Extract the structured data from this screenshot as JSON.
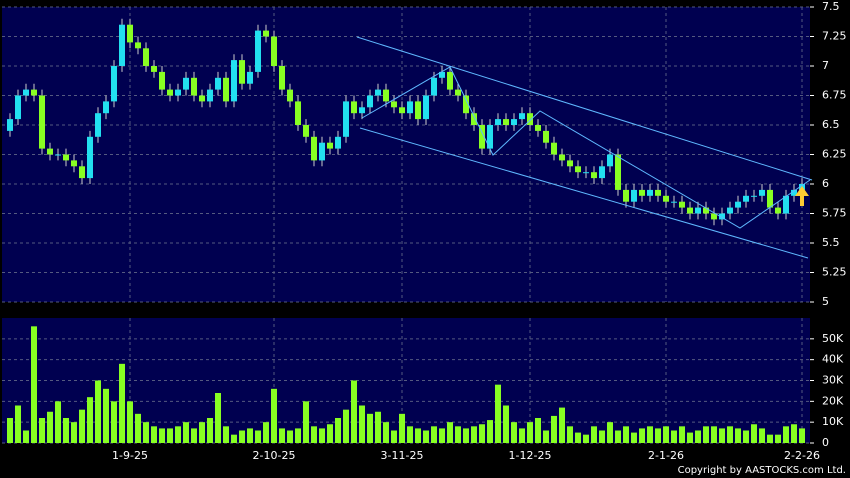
{
  "chart_data": [
    {
      "type": "candlestick",
      "up_color": "#22e0f0",
      "down_color": "#88ff22",
      "grid": true,
      "open": [
        6.45,
        6.55,
        6.75,
        6.8,
        6.75,
        6.3,
        6.25,
        6.25,
        6.2,
        6.15,
        6.05,
        6.4,
        6.6,
        6.7,
        7.0,
        7.35,
        7.2,
        7.15,
        7.0,
        6.95,
        6.8,
        6.75,
        6.8,
        6.9,
        6.75,
        6.7,
        6.8,
        6.9,
        6.7,
        7.05,
        6.85,
        6.95,
        7.3,
        7.25,
        7.0,
        6.8,
        6.7,
        6.5,
        6.4,
        6.2,
        6.35,
        6.3,
        6.4,
        6.7,
        6.6,
        6.65,
        6.75,
        6.8,
        6.7,
        6.65,
        6.6,
        6.7,
        6.55,
        6.75,
        6.9,
        6.95,
        6.8,
        6.75,
        6.6,
        6.5,
        6.3,
        6.5,
        6.55,
        6.5,
        6.55,
        6.6,
        6.5,
        6.45,
        6.35,
        6.25,
        6.2,
        6.15,
        6.1,
        6.1,
        6.05,
        6.15,
        6.25,
        5.95,
        5.85,
        5.95,
        5.9,
        5.95,
        5.9,
        5.85,
        5.85,
        5.8,
        5.75,
        5.8,
        5.75,
        5.7,
        5.75,
        5.8,
        5.85,
        5.9,
        5.9,
        5.95,
        5.8,
        5.75,
        5.9,
        5.95
      ],
      "high": [
        6.6,
        6.8,
        6.85,
        6.85,
        6.8,
        6.35,
        6.3,
        6.3,
        6.25,
        6.2,
        6.45,
        6.65,
        6.75,
        7.05,
        7.4,
        7.4,
        7.25,
        7.2,
        7.05,
        7.0,
        6.85,
        6.85,
        6.95,
        6.95,
        6.8,
        6.85,
        6.95,
        6.95,
        7.1,
        7.1,
        7.0,
        7.35,
        7.35,
        7.3,
        7.05,
        6.85,
        6.75,
        6.55,
        6.45,
        6.4,
        6.4,
        6.45,
        6.75,
        6.75,
        6.7,
        6.8,
        6.85,
        6.85,
        6.75,
        6.7,
        6.75,
        6.75,
        6.8,
        6.95,
        7.0,
        7.0,
        6.85,
        6.8,
        6.65,
        6.55,
        6.55,
        6.6,
        6.6,
        6.6,
        6.65,
        6.65,
        6.55,
        6.5,
        6.4,
        6.3,
        6.25,
        6.2,
        6.15,
        6.15,
        6.2,
        6.3,
        6.3,
        6.0,
        6.0,
        6.0,
        6.0,
        6.0,
        5.95,
        5.9,
        5.9,
        5.85,
        5.85,
        5.85,
        5.8,
        5.8,
        5.85,
        5.9,
        5.95,
        5.95,
        6.0,
        6.0,
        5.85,
        5.95,
        6.0,
        6.05
      ],
      "low": [
        6.4,
        6.5,
        6.7,
        6.7,
        6.25,
        6.2,
        6.2,
        6.15,
        6.1,
        6.0,
        6.0,
        6.35,
        6.55,
        6.65,
        6.95,
        7.15,
        7.1,
        6.95,
        6.9,
        6.75,
        6.7,
        6.7,
        6.75,
        6.7,
        6.65,
        6.65,
        6.75,
        6.65,
        6.65,
        6.8,
        6.8,
        6.9,
        7.2,
        6.95,
        6.75,
        6.65,
        6.45,
        6.35,
        6.15,
        6.15,
        6.25,
        6.25,
        6.35,
        6.55,
        6.55,
        6.6,
        6.7,
        6.65,
        6.6,
        6.55,
        6.55,
        6.5,
        6.5,
        6.7,
        6.85,
        6.75,
        6.7,
        6.55,
        6.45,
        6.25,
        6.25,
        6.45,
        6.45,
        6.45,
        6.5,
        6.45,
        6.4,
        6.3,
        6.2,
        6.15,
        6.1,
        6.05,
        6.05,
        6.0,
        6.0,
        6.1,
        5.9,
        5.8,
        5.8,
        5.85,
        5.85,
        5.85,
        5.8,
        5.8,
        5.75,
        5.7,
        5.7,
        5.7,
        5.65,
        5.65,
        5.7,
        5.75,
        5.8,
        5.85,
        5.85,
        5.75,
        5.7,
        5.7,
        5.85,
        5.9
      ],
      "close": [
        6.55,
        6.75,
        6.8,
        6.75,
        6.3,
        6.25,
        6.25,
        6.2,
        6.15,
        6.05,
        6.4,
        6.6,
        6.7,
        7.0,
        7.35,
        7.2,
        7.15,
        7.0,
        6.95,
        6.8,
        6.75,
        6.8,
        6.9,
        6.75,
        6.7,
        6.8,
        6.9,
        6.7,
        7.05,
        6.85,
        6.95,
        7.3,
        7.25,
        7.0,
        6.8,
        6.7,
        6.5,
        6.4,
        6.2,
        6.35,
        6.3,
        6.4,
        6.7,
        6.6,
        6.65,
        6.75,
        6.8,
        6.7,
        6.65,
        6.6,
        6.7,
        6.55,
        6.75,
        6.9,
        6.95,
        6.8,
        6.75,
        6.6,
        6.5,
        6.3,
        6.5,
        6.55,
        6.5,
        6.55,
        6.6,
        6.5,
        6.45,
        6.35,
        6.25,
        6.2,
        6.15,
        6.1,
        6.1,
        6.05,
        6.15,
        6.25,
        5.95,
        5.85,
        5.95,
        5.9,
        5.95,
        5.9,
        5.85,
        5.85,
        5.8,
        5.75,
        5.8,
        5.75,
        5.7,
        5.75,
        5.8,
        5.85,
        5.9,
        5.9,
        5.95,
        5.8,
        5.75,
        5.9,
        5.95,
        6.0
      ],
      "ylim": [
        5,
        7.5
      ],
      "yticks": [
        5,
        5.25,
        5.5,
        5.75,
        6,
        6.25,
        6.5,
        6.75,
        7,
        7.25,
        7.5
      ]
    },
    {
      "type": "bar",
      "color": "#88ff22",
      "grid": true,
      "categories": [
        null,
        null,
        null,
        null,
        null,
        null,
        null,
        null,
        null,
        null,
        null,
        null,
        null,
        null,
        null,
        "1-9-25",
        null,
        null,
        null,
        null,
        null,
        null,
        null,
        null,
        null,
        null,
        null,
        null,
        null,
        null,
        null,
        null,
        null,
        "2-10-25",
        null,
        null,
        null,
        null,
        null,
        null,
        null,
        null,
        null,
        null,
        null,
        null,
        null,
        null,
        null,
        "3-11-25",
        null,
        null,
        null,
        null,
        null,
        null,
        null,
        null,
        null,
        null,
        null,
        null,
        null,
        null,
        null,
        "1-12-25",
        null,
        null,
        null,
        null,
        null,
        null,
        null,
        null,
        null,
        null,
        null,
        null,
        null,
        null,
        null,
        null,
        "2-1-26",
        null,
        null,
        null,
        null,
        null,
        null,
        null,
        null,
        null,
        null,
        null,
        null,
        null,
        null,
        null,
        null,
        "2-2-26"
      ],
      "values": [
        12000,
        18000,
        6000,
        56000,
        12000,
        15000,
        20000,
        12000,
        10000,
        16000,
        22000,
        30000,
        26000,
        20000,
        38000,
        20000,
        14000,
        10000,
        8000,
        7000,
        7000,
        8000,
        10000,
        7000,
        10000,
        12000,
        24000,
        8000,
        4000,
        6000,
        7000,
        6000,
        10000,
        26000,
        7000,
        6000,
        7000,
        20000,
        8000,
        7000,
        9000,
        12000,
        16000,
        30000,
        18000,
        14000,
        15000,
        10000,
        6000,
        14000,
        8000,
        7000,
        6000,
        8000,
        7000,
        10000,
        8000,
        7000,
        8000,
        9000,
        11000,
        28000,
        18000,
        10000,
        7000,
        10000,
        12000,
        6000,
        13000,
        17000,
        8000,
        5000,
        4000,
        8000,
        6000,
        10000,
        6000,
        8000,
        5000,
        7000,
        8000,
        7000,
        8000,
        6000,
        8000,
        5000,
        6000,
        8000,
        8000,
        7000,
        8000,
        7000,
        6000,
        9000,
        7000,
        4000,
        4000,
        8000,
        9000,
        7000
      ],
      "ylim": [
        0,
        60000
      ],
      "yticks": [
        0,
        {
          "value": 10000,
          "label": "10K"
        },
        {
          "value": 20000,
          "label": "20K"
        },
        {
          "value": 30000,
          "label": "30K"
        },
        {
          "value": 40000,
          "label": "40K"
        },
        {
          "value": 50000,
          "label": "50K"
        }
      ]
    }
  ],
  "copyright": "Copyright by AASTOCKS.com Ltd."
}
